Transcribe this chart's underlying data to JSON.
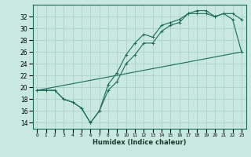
{
  "title": "",
  "xlabel": "Humidex (Indice chaleur)",
  "bg_color": "#c8e8e0",
  "line_color": "#1a6b5a",
  "grid_color": "#a8cfc8",
  "xlim": [
    -0.5,
    23.5
  ],
  "ylim": [
    13,
    34
  ],
  "yticks": [
    14,
    16,
    18,
    20,
    22,
    24,
    26,
    28,
    30,
    32
  ],
  "xticks": [
    0,
    1,
    2,
    3,
    4,
    5,
    6,
    7,
    8,
    9,
    10,
    11,
    12,
    13,
    14,
    15,
    16,
    17,
    18,
    19,
    20,
    21,
    22,
    23
  ],
  "line1_x": [
    0,
    1,
    2,
    3,
    4,
    5,
    6,
    7,
    8,
    9,
    10,
    11,
    12,
    13,
    14,
    15,
    16,
    17,
    18,
    19,
    20,
    21,
    22,
    23
  ],
  "line1_y": [
    19.5,
    19.5,
    19.5,
    18.0,
    17.5,
    16.5,
    14.0,
    16.0,
    20.5,
    22.5,
    25.5,
    27.5,
    29.0,
    28.5,
    30.5,
    31.0,
    31.5,
    32.5,
    33.0,
    33.0,
    32.0,
    32.5,
    32.5,
    31.5
  ],
  "line2_x": [
    0,
    1,
    2,
    3,
    4,
    5,
    6,
    7,
    8,
    9,
    10,
    11,
    12,
    13,
    14,
    15,
    16,
    17,
    18,
    19,
    20,
    21,
    22,
    23
  ],
  "line2_y": [
    19.5,
    19.5,
    19.5,
    18.0,
    17.5,
    16.5,
    14.0,
    16.0,
    19.5,
    21.0,
    24.0,
    25.5,
    27.5,
    27.5,
    29.5,
    30.5,
    31.0,
    32.5,
    32.5,
    32.5,
    32.0,
    32.5,
    31.5,
    26.0
  ],
  "line3_x": [
    0,
    23
  ],
  "line3_y": [
    19.5,
    26.0
  ]
}
